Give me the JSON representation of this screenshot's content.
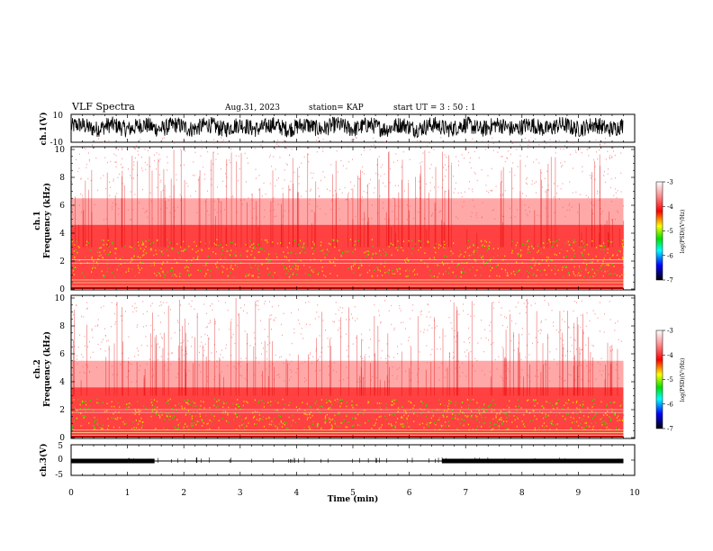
{
  "header": {
    "title": "VLF Spectra",
    "date": "Aug.31, 2023",
    "station": "station= KAP",
    "start": "start  UT  =   3  : 50 : 1"
  },
  "chart_data": [
    {
      "type": "line",
      "panel": "ch1-waveform",
      "ylabel": "ch.1(V)",
      "ylim": [
        -10,
        10
      ],
      "yticks": [
        "10",
        "-10"
      ],
      "xlim": [
        0,
        10
      ],
      "description_values": {
        "typical_range": [
          -5,
          7
        ]
      }
    },
    {
      "type": "heatmap",
      "panel": "ch1-spectrogram",
      "ylabel": "ch.1\nFrequency  (kHz)",
      "ylim": [
        0,
        10
      ],
      "yticks": [
        "0",
        "2",
        "4",
        "6",
        "8",
        "10"
      ],
      "xlim": [
        0,
        9.8
      ],
      "colorbar": {
        "label": "log(PSD)(V²/Hz)",
        "range": [
          -7,
          -3
        ],
        "ticks": [
          "-3",
          "-4",
          "-5",
          "-6",
          "-7"
        ]
      }
    },
    {
      "type": "heatmap",
      "panel": "ch2-spectrogram",
      "ylabel": "ch.2\nFrequency  (kHz)",
      "ylim": [
        0,
        10
      ],
      "yticks": [
        "0",
        "2",
        "4",
        "6",
        "8",
        "10"
      ],
      "xlim": [
        0,
        9.8
      ],
      "colorbar": {
        "label": "log(PSD)(V²/Hz)",
        "range": [
          -7,
          -3
        ],
        "ticks": [
          "-3",
          "-4",
          "-5",
          "-6",
          "-7"
        ]
      }
    },
    {
      "type": "line",
      "panel": "ch3-trace",
      "ylabel": "ch.3(V)",
      "ylim": [
        -5,
        5
      ],
      "yticks": [
        "5",
        "0",
        "-5"
      ],
      "xlim": [
        0,
        10
      ],
      "thick_segments": [
        [
          0,
          1.48
        ],
        [
          6.58,
          9.8
        ]
      ],
      "baseline_value": -0.3
    }
  ],
  "x_axis": {
    "label": "Time  (min)",
    "ticks": [
      "0",
      "1",
      "2",
      "3",
      "4",
      "5",
      "6",
      "7",
      "8",
      "9",
      "10"
    ]
  },
  "colors": {
    "waveform": "#000000",
    "spectrum_background": "#ffffff",
    "spectrum_main": "#ff2020",
    "spectrum_dark": "#b00000",
    "spectrum_mid": "#ffd000",
    "spectrum_green": "#30e000",
    "colorbar": [
      "#ffffff",
      "#ff9999",
      "#ff0000",
      "#ffff00",
      "#00e000",
      "#00ffff",
      "#0000ff",
      "#000000"
    ]
  }
}
